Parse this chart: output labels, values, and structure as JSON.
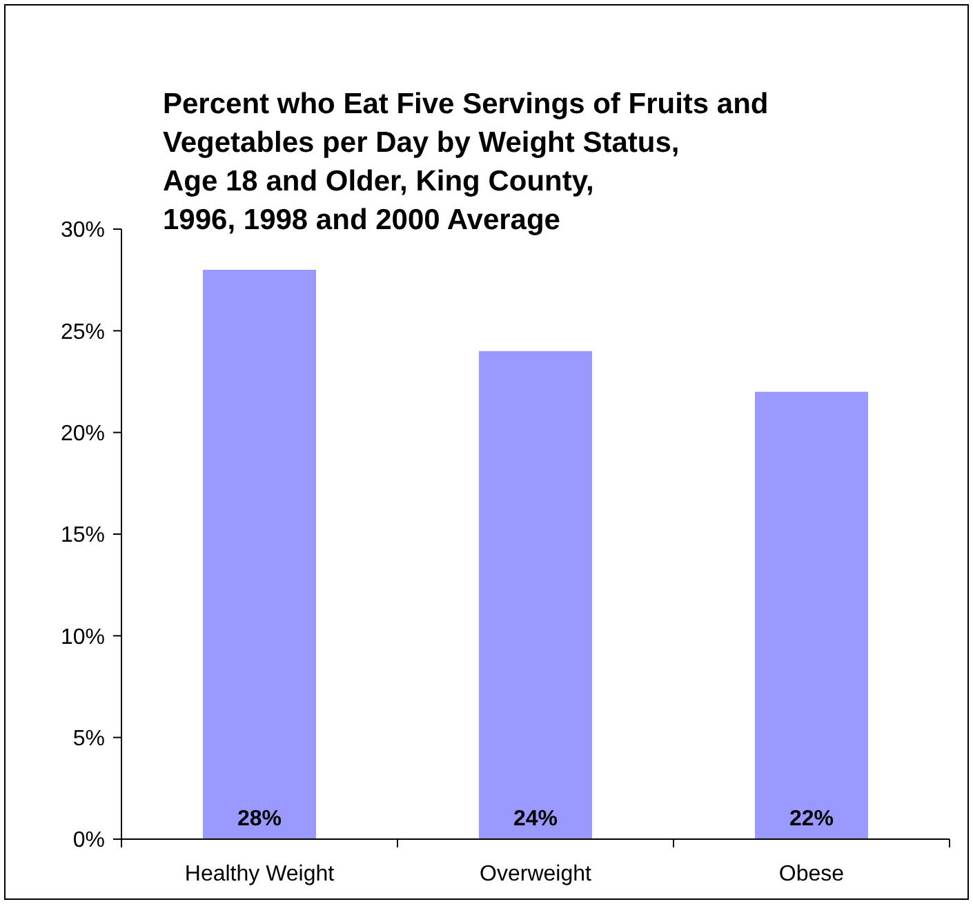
{
  "chart_data": {
    "type": "bar",
    "title": "Percent who Eat Five Servings of Fruits and\nVegetables per Day by Weight Status,\nAge 18 and Older, King County,\n1996, 1998 and 2000 Average",
    "categories": [
      "Healthy Weight",
      "Overweight",
      "Obese"
    ],
    "values": [
      28,
      24,
      22
    ],
    "color": "#9999ff",
    "value_labels": [
      "28%",
      "24%",
      "22%"
    ],
    "ylim": [
      0,
      30
    ],
    "yticks": [
      {
        "value": 0,
        "label": "0%"
      },
      {
        "value": 5,
        "label": "5%"
      },
      {
        "value": 10,
        "label": "10%"
      },
      {
        "value": 15,
        "label": "15%"
      },
      {
        "value": 20,
        "label": "20%"
      },
      {
        "value": 25,
        "label": "25%"
      },
      {
        "value": 30,
        "label": "30%"
      }
    ],
    "grid": false
  }
}
